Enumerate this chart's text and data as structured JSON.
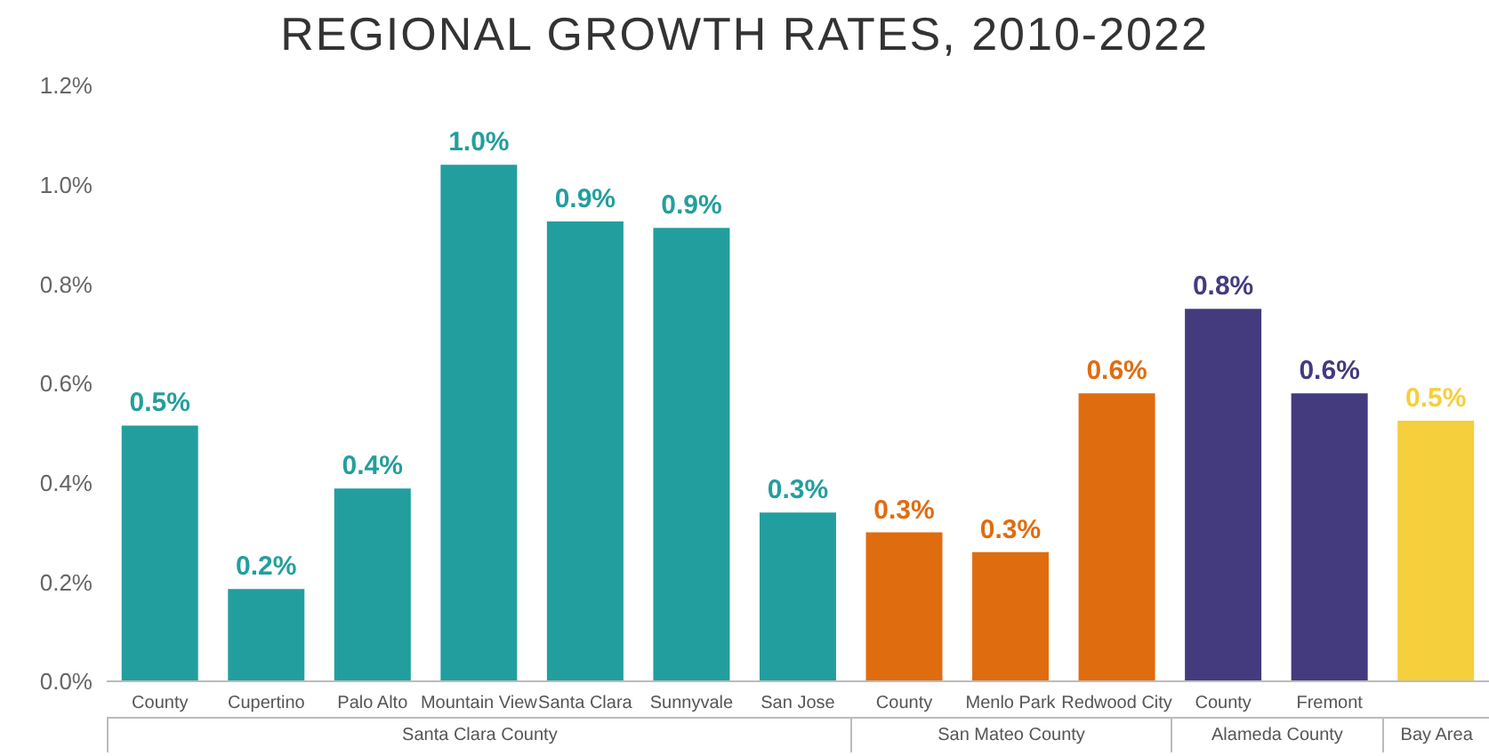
{
  "chart_data": {
    "type": "bar",
    "title": "REGIONAL GROWTH RATES, 2010-2022",
    "categories": [
      "County",
      "Cupertino",
      "Palo Alto",
      "Mountain View",
      "Santa Clara",
      "Sunnyvale",
      "San Jose",
      "County",
      "Menlo Park",
      "Redwood City",
      "County",
      "Fremont",
      null
    ],
    "values": [
      0.515,
      0.186,
      0.388,
      1.04,
      0.926,
      0.913,
      0.34,
      0.3,
      0.26,
      0.58,
      0.75,
      0.58,
      0.525
    ],
    "colors": [
      "#239e9e",
      "#239e9e",
      "#239e9e",
      "#239e9e",
      "#239e9e",
      "#239e9e",
      "#239e9e",
      "#e06c10",
      "#e06c10",
      "#e06c10",
      "#433b7e",
      "#433b7e",
      "#f5cf3c"
    ],
    "value_labels": [
      "0.5%",
      "0.2%",
      "0.4%",
      "1.0%",
      "0.9%",
      "0.9%",
      "0.3%",
      "0.3%",
      "0.3%",
      "0.6%",
      "0.8%",
      "0.6%",
      "0.5%"
    ],
    "annotations": [
      "Santa Clara County",
      "San Mateo County",
      "Alameda County",
      "Bay Area"
    ],
    "ylim": [
      0,
      1.2
    ],
    "yticks": [
      {
        "value": 0,
        "label": "0.0%"
      },
      {
        "value": 0.2,
        "label": "0.2%"
      },
      {
        "value": 0.4,
        "label": "0.4%"
      },
      {
        "value": 0.6,
        "label": "0.6%"
      },
      {
        "value": 0.8,
        "label": "0.8%"
      },
      {
        "value": 1.0,
        "label": "1.0%"
      },
      {
        "value": 1.2,
        "label": "1.2%"
      }
    ],
    "grid": false,
    "legend": false
  }
}
